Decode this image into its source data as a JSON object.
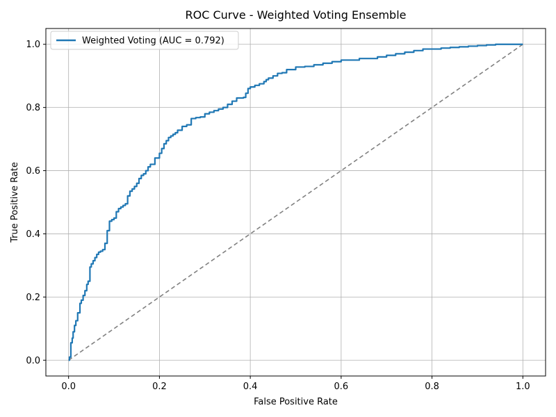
{
  "chart_data": {
    "type": "line",
    "title": "ROC Curve - Weighted Voting Ensemble",
    "xlabel": "False Positive Rate",
    "ylabel": "True Positive Rate",
    "xlim": [
      -0.05,
      1.05
    ],
    "ylim": [
      -0.05,
      1.05
    ],
    "xticks": [
      "0.0",
      "0.2",
      "0.4",
      "0.6",
      "0.8",
      "1.0"
    ],
    "yticks": [
      "0.0",
      "0.2",
      "0.4",
      "0.6",
      "0.8",
      "1.0"
    ],
    "grid": true,
    "legend_position": "top-left",
    "colors": {
      "roc": "#1f77b4",
      "diagonal": "#808080",
      "grid": "#b0b0b0"
    },
    "series": [
      {
        "name": "Weighted Voting (AUC = 0.792)",
        "style": "solid",
        "x": [
          0.0,
          0.002,
          0.005,
          0.008,
          0.01,
          0.013,
          0.016,
          0.02,
          0.025,
          0.028,
          0.032,
          0.036,
          0.04,
          0.043,
          0.047,
          0.05,
          0.054,
          0.058,
          0.062,
          0.066,
          0.07,
          0.075,
          0.08,
          0.085,
          0.09,
          0.095,
          0.1,
          0.105,
          0.11,
          0.115,
          0.12,
          0.125,
          0.13,
          0.135,
          0.14,
          0.145,
          0.15,
          0.155,
          0.16,
          0.165,
          0.17,
          0.175,
          0.18,
          0.19,
          0.2,
          0.205,
          0.21,
          0.215,
          0.22,
          0.225,
          0.23,
          0.235,
          0.24,
          0.25,
          0.26,
          0.27,
          0.28,
          0.29,
          0.3,
          0.31,
          0.32,
          0.33,
          0.34,
          0.35,
          0.36,
          0.37,
          0.38,
          0.385,
          0.39,
          0.395,
          0.4,
          0.41,
          0.42,
          0.43,
          0.435,
          0.44,
          0.45,
          0.46,
          0.47,
          0.48,
          0.5,
          0.52,
          0.54,
          0.56,
          0.58,
          0.6,
          0.62,
          0.64,
          0.66,
          0.68,
          0.7,
          0.72,
          0.74,
          0.76,
          0.78,
          0.8,
          0.82,
          0.84,
          0.86,
          0.88,
          0.9,
          0.92,
          0.94,
          0.96,
          0.98,
          0.99,
          1.0
        ],
        "y": [
          0.0,
          0.01,
          0.055,
          0.07,
          0.09,
          0.11,
          0.125,
          0.15,
          0.18,
          0.19,
          0.205,
          0.22,
          0.24,
          0.25,
          0.295,
          0.305,
          0.315,
          0.325,
          0.335,
          0.342,
          0.345,
          0.35,
          0.37,
          0.41,
          0.44,
          0.445,
          0.45,
          0.47,
          0.48,
          0.485,
          0.49,
          0.495,
          0.52,
          0.535,
          0.542,
          0.55,
          0.56,
          0.575,
          0.585,
          0.59,
          0.6,
          0.612,
          0.62,
          0.64,
          0.655,
          0.67,
          0.685,
          0.695,
          0.705,
          0.71,
          0.715,
          0.72,
          0.728,
          0.74,
          0.745,
          0.765,
          0.768,
          0.77,
          0.78,
          0.785,
          0.79,
          0.795,
          0.8,
          0.81,
          0.82,
          0.83,
          0.83,
          0.832,
          0.845,
          0.86,
          0.865,
          0.87,
          0.875,
          0.882,
          0.888,
          0.893,
          0.9,
          0.908,
          0.91,
          0.92,
          0.928,
          0.93,
          0.935,
          0.94,
          0.945,
          0.95,
          0.95,
          0.955,
          0.955,
          0.96,
          0.965,
          0.97,
          0.975,
          0.98,
          0.985,
          0.985,
          0.988,
          0.99,
          0.992,
          0.994,
          0.996,
          0.998,
          1.0,
          1.0,
          1.0,
          1.0,
          1.0
        ]
      },
      {
        "name": "",
        "style": "dashed",
        "x": [
          0.0,
          1.0
        ],
        "y": [
          0.0,
          1.0
        ]
      }
    ]
  }
}
